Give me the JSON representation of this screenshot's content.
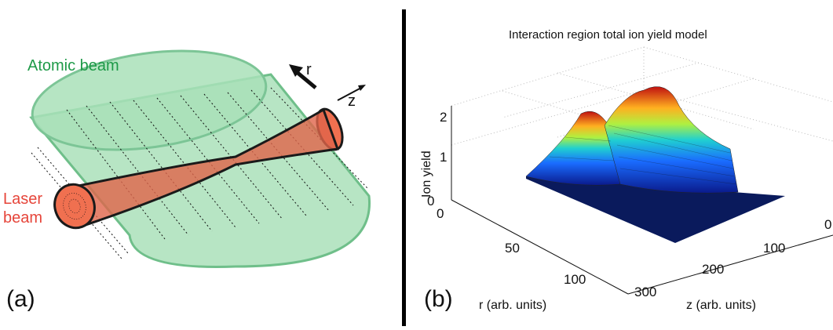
{
  "panel_a": {
    "label": "(a)",
    "atomic_beam_label": "Atomic beam",
    "laser_beam_label_1": "Laser",
    "laser_beam_label_2": "beam",
    "r_axis_label": "r",
    "z_axis_label": "z",
    "colors": {
      "atomic": "#9fdcb0",
      "atomic_edge": "#6fbf8a",
      "laser": "#f07050",
      "label_green": "#1e9a48",
      "label_red": "#e6453a"
    }
  },
  "panel_b": {
    "label": "(b)",
    "title": "Interaction region total ion yield model",
    "zlabel": "Ion yield",
    "xlabel": "r (arb. units)",
    "ylabel": "z (arb. units)",
    "z_ticks": [
      "0",
      "1",
      "2"
    ],
    "r_ticks": [
      "0",
      "50",
      "100"
    ],
    "z_axis_ticks": [
      "100",
      "200",
      "300"
    ],
    "cut_off_tick": "0"
  },
  "chart_data": {
    "type": "surface",
    "title": "Interaction region total ion yield model",
    "xlabel": "r (arb. units)",
    "ylabel": "z (arb. units)",
    "zlabel": "Ion yield",
    "r_range": [
      0,
      120
    ],
    "z_range": [
      0,
      300
    ],
    "yield_range": [
      0,
      2
    ],
    "peaks": [
      {
        "z": 100,
        "yield": 1.7
      },
      {
        "z": 200,
        "yield": 2.0
      }
    ],
    "colormap": "jet",
    "grid": true
  }
}
